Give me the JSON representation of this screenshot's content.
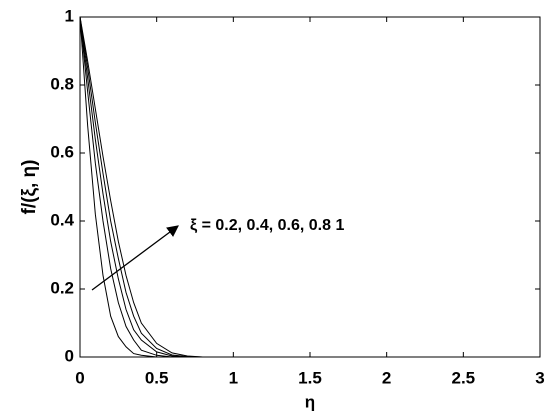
{
  "chart_data": {
    "type": "line",
    "xlabel": "η",
    "ylabel": "f/(ξ, η)",
    "annotation": "ξ = 0.2, 0.4, 0.6, 0.8 1",
    "x": [
      0,
      0.05,
      0.1,
      0.15,
      0.2,
      0.25,
      0.3,
      0.35,
      0.4,
      0.5,
      0.6,
      0.7,
      0.8,
      1,
      3
    ],
    "series": [
      {
        "color": "#000000",
        "values": [
          1,
          0.68,
          0.42,
          0.24,
          0.12,
          0.06,
          0.03,
          0.01,
          0.005,
          0,
          0,
          0,
          0,
          0,
          0
        ]
      },
      {
        "color": "#000000",
        "values": [
          1,
          0.78,
          0.57,
          0.4,
          0.26,
          0.16,
          0.09,
          0.05,
          0.02,
          0.005,
          0,
          0,
          0,
          0,
          0
        ]
      },
      {
        "color": "#000000",
        "values": [
          1,
          0.82,
          0.64,
          0.48,
          0.34,
          0.23,
          0.14,
          0.08,
          0.05,
          0.015,
          0.003,
          0,
          0,
          0,
          0
        ]
      },
      {
        "color": "#000000",
        "values": [
          1,
          0.85,
          0.69,
          0.54,
          0.4,
          0.29,
          0.19,
          0.12,
          0.07,
          0.025,
          0.006,
          0.001,
          0,
          0,
          0
        ]
      },
      {
        "color": "#000000",
        "values": [
          1,
          0.87,
          0.73,
          0.59,
          0.46,
          0.34,
          0.24,
          0.16,
          0.1,
          0.04,
          0.012,
          0.003,
          0,
          0,
          0
        ]
      }
    ],
    "xlim": [
      0,
      3
    ],
    "xticks": [
      0,
      0.5,
      1,
      1.5,
      2,
      2.5,
      3
    ],
    "ylim": [
      0,
      1
    ],
    "yticks": [
      0,
      0.2,
      0.4,
      0.6,
      0.8,
      1
    ],
    "grid": false
  }
}
